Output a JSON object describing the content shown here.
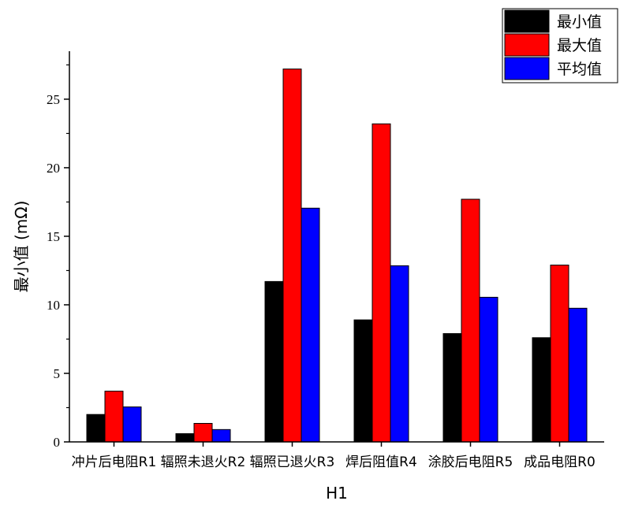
{
  "chart_data": {
    "type": "bar",
    "categories": [
      "冲片后电阻R1",
      "辐照未退火R2",
      "辐照已退火R3",
      "焊后阻值R4",
      "涂胶后电阻R5",
      "成品电阻R0"
    ],
    "series": [
      {
        "name": "最小值",
        "color": "#000000",
        "values": [
          2.0,
          0.6,
          11.7,
          8.9,
          7.9,
          7.6
        ]
      },
      {
        "name": "最大值",
        "color": "#ff0000",
        "values": [
          3.7,
          1.35,
          27.2,
          23.2,
          17.7,
          12.9
        ]
      },
      {
        "name": "平均值",
        "color": "#0000ff",
        "values": [
          2.55,
          0.9,
          17.05,
          12.85,
          10.55,
          9.75
        ]
      }
    ],
    "yticks": [
      0,
      5,
      10,
      15,
      20,
      25
    ],
    "ylim": [
      0,
      28.5
    ],
    "xlabel": "H1",
    "ylabel": "最小值 (mΩ)",
    "legend_position": "top-right"
  }
}
